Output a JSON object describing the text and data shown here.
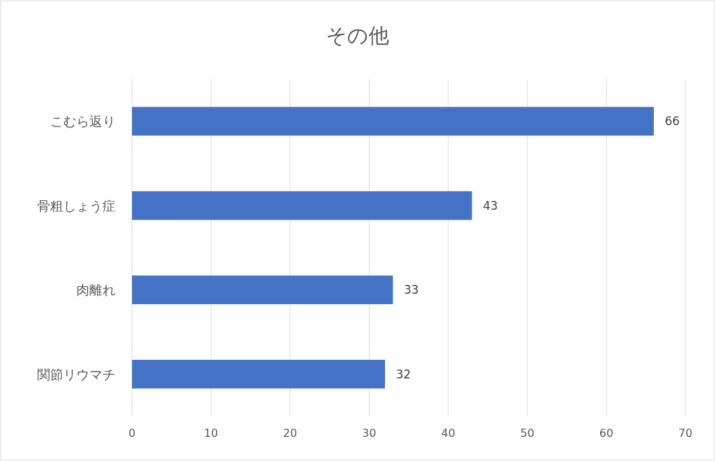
{
  "chart_data": {
    "type": "bar",
    "title": "その他",
    "orientation": "horizontal",
    "categories": [
      "こむら返り",
      "骨粗しょう症",
      "肉離れ",
      "関節リウマチ"
    ],
    "values": [
      66,
      43,
      33,
      32
    ],
    "color": "#4472c4",
    "xlim": [
      0,
      70
    ],
    "xticks": [
      0,
      10,
      20,
      30,
      40,
      50,
      60,
      70
    ],
    "grid": "x",
    "data_labels": true
  }
}
